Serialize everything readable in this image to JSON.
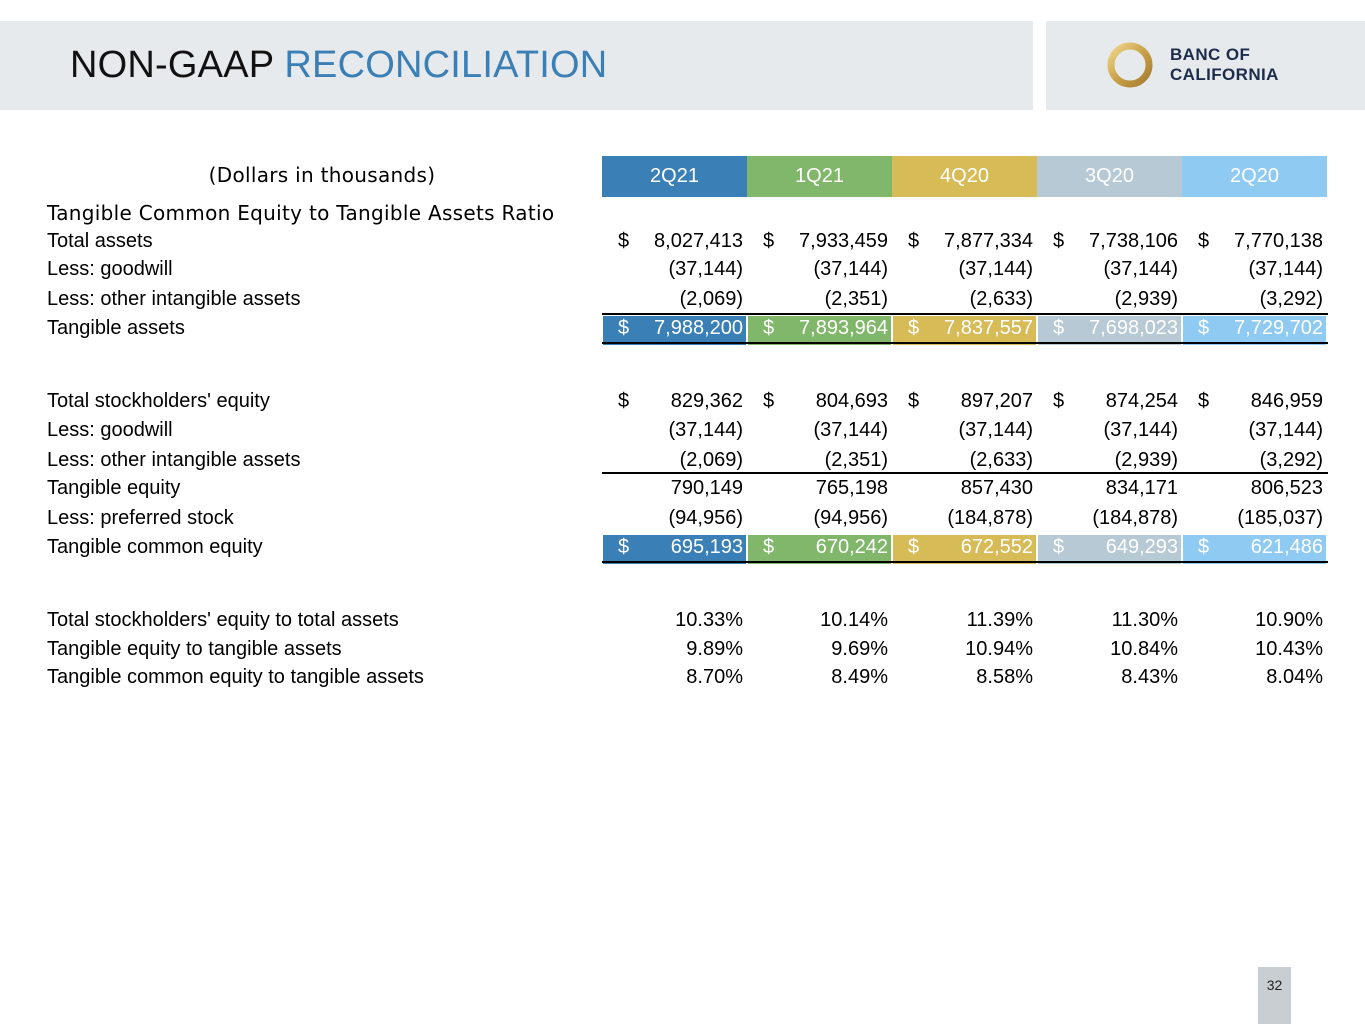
{
  "header": {
    "title_part1": "NON-GAAP",
    "title_part2": "RECONCILIATION",
    "logo_line1": "BANC OF",
    "logo_line2": "CALIFORNIA",
    "logo_icon": "gold-ring-logo-icon"
  },
  "table": {
    "units_label": "(Dollars in thousands)",
    "section_title": "Tangible Common Equity to Tangible Assets Ratio",
    "columns": [
      "2Q21",
      "1Q21",
      "4Q20",
      "3Q20",
      "2Q20"
    ],
    "column_colors": [
      "#3a7fb5",
      "#80b76a",
      "#d6bb57",
      "#b6c9d5",
      "#8ecaf2"
    ],
    "rows": [
      {
        "label": "Total assets",
        "dollar": true,
        "values": [
          "8,027,413",
          "7,933,459",
          "7,877,334",
          "7,738,106",
          "7,770,138"
        ]
      },
      {
        "label": "Less: goodwill",
        "dollar": false,
        "values": [
          "(37,144)",
          "(37,144)",
          "(37,144)",
          "(37,144)",
          "(37,144)"
        ]
      },
      {
        "label": "Less: other intangible assets",
        "dollar": false,
        "values": [
          "(2,069)",
          "(2,351)",
          "(2,633)",
          "(2,939)",
          "(3,292)"
        ]
      },
      {
        "label": "Tangible assets",
        "dollar": true,
        "highlight": true,
        "values": [
          "7,988,200",
          "7,893,964",
          "7,837,557",
          "7,698,023",
          "7,729,702"
        ]
      },
      {
        "label": "Total stockholders' equity",
        "dollar": true,
        "values": [
          "829,362",
          "804,693",
          "897,207",
          "874,254",
          "846,959"
        ]
      },
      {
        "label": "Less: goodwill",
        "dollar": false,
        "values": [
          "(37,144)",
          "(37,144)",
          "(37,144)",
          "(37,144)",
          "(37,144)"
        ]
      },
      {
        "label": "Less: other intangible assets",
        "dollar": false,
        "values": [
          "(2,069)",
          "(2,351)",
          "(2,633)",
          "(2,939)",
          "(3,292)"
        ]
      },
      {
        "label": "Tangible equity",
        "dollar": false,
        "values": [
          "790,149",
          "765,198",
          "857,430",
          "834,171",
          "806,523"
        ]
      },
      {
        "label": "Less: preferred stock",
        "dollar": false,
        "values": [
          "(94,956)",
          "(94,956)",
          "(184,878)",
          "(184,878)",
          "(185,037)"
        ]
      },
      {
        "label": "Tangible common equity",
        "dollar": true,
        "highlight": true,
        "values": [
          "695,193",
          "670,242",
          "672,552",
          "649,293",
          "621,486"
        ]
      },
      {
        "label": "Total stockholders' equity to total assets",
        "dollar": false,
        "values": [
          "10.33%",
          "10.14%",
          "11.39%",
          "11.30%",
          "10.90%"
        ]
      },
      {
        "label": "Tangible equity to tangible assets",
        "dollar": false,
        "values": [
          "9.89%",
          "9.69%",
          "10.94%",
          "10.84%",
          "10.43%"
        ]
      },
      {
        "label": "Tangible common equity to tangible assets",
        "dollar": false,
        "values": [
          "8.70%",
          "8.49%",
          "8.58%",
          "8.43%",
          "8.04%"
        ]
      }
    ],
    "currency_symbol": "$"
  },
  "footer": {
    "page_number": "32"
  }
}
